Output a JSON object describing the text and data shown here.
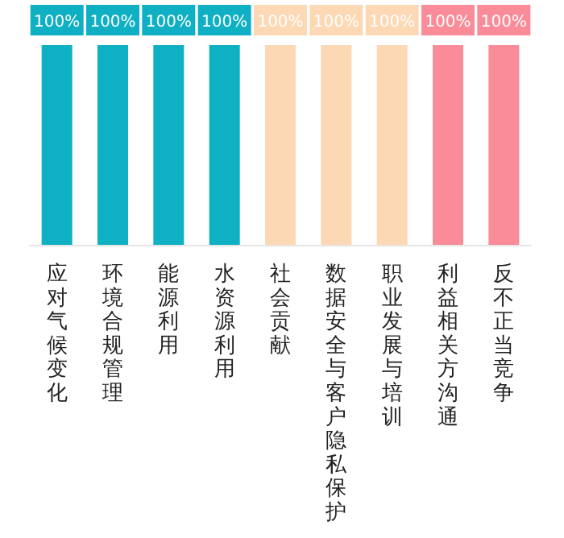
{
  "chart_data": {
    "type": "bar",
    "categories": [
      "应对气候变化",
      "环境合规管理",
      "能源利用",
      "水资源利用",
      "社会贡献",
      "数据安全与客户隐私保护",
      "职业发展与培训",
      "利益相关方沟通",
      "反不正当竞争"
    ],
    "values": [
      100,
      100,
      100,
      100,
      100,
      100,
      100,
      100,
      100
    ],
    "value_labels": [
      "100%",
      "100%",
      "100%",
      "100%",
      "100%",
      "100%",
      "100%",
      "100%",
      "100%"
    ],
    "colors": [
      "#0fb0c4",
      "#0fb0c4",
      "#0fb0c4",
      "#0fb0c4",
      "#fcd9b4",
      "#fcd9b4",
      "#fcd9b4",
      "#f98c98",
      "#f98c98"
    ]
  }
}
